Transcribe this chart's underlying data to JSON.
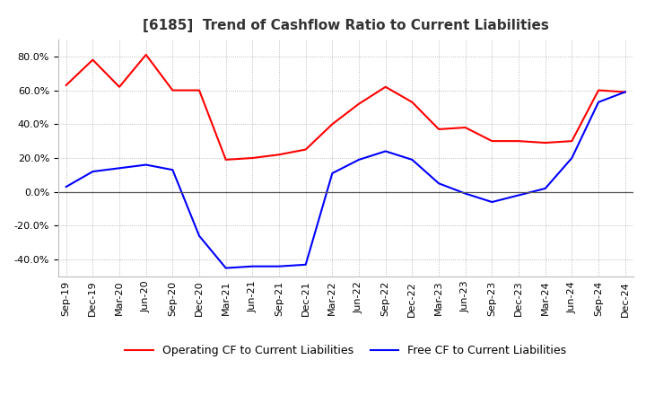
{
  "title": "[6185]  Trend of Cashflow Ratio to Current Liabilities",
  "x_labels": [
    "Sep-19",
    "Dec-19",
    "Mar-20",
    "Jun-20",
    "Sep-20",
    "Dec-20",
    "Mar-21",
    "Jun-21",
    "Sep-21",
    "Dec-21",
    "Mar-22",
    "Jun-22",
    "Sep-22",
    "Dec-22",
    "Mar-23",
    "Jun-23",
    "Sep-23",
    "Dec-23",
    "Mar-24",
    "Jun-24",
    "Sep-24",
    "Dec-24"
  ],
  "operating_cf": [
    63,
    78,
    62,
    81,
    60,
    60,
    19,
    20,
    22,
    25,
    40,
    52,
    62,
    53,
    37,
    38,
    30,
    30,
    29,
    30,
    60,
    59
  ],
  "free_cf": [
    3,
    12,
    14,
    16,
    13,
    -26,
    -45,
    -44,
    -44,
    -43,
    11,
    19,
    24,
    19,
    5,
    -1,
    -6,
    -2,
    2,
    20,
    53,
    59
  ],
  "ylim": [
    -50,
    90
  ],
  "yticks": [
    -40,
    -20,
    0,
    20,
    40,
    60,
    80
  ],
  "operating_color": "#FF0000",
  "free_color": "#0000FF",
  "bg_color": "#FFFFFF",
  "plot_bg_color": "#FFFFFF",
  "grid_color": "#AAAAAA",
  "zero_line_color": "#555555",
  "legend_op_label": "Operating CF to Current Liabilities",
  "legend_free_label": "Free CF to Current Liabilities",
  "title_fontsize": 11,
  "axis_fontsize": 8,
  "legend_fontsize": 9
}
